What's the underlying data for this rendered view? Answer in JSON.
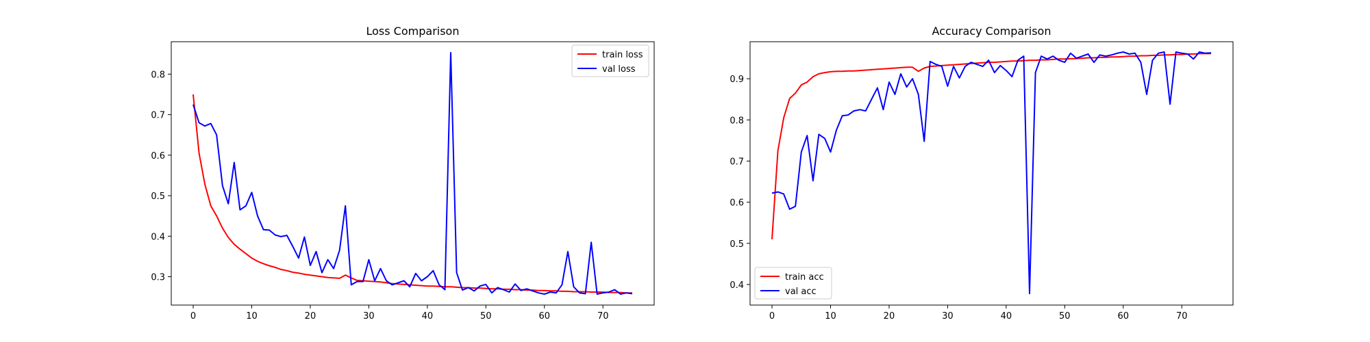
{
  "chart_data": [
    {
      "type": "line",
      "title": "Loss Comparison",
      "xlabel": "",
      "ylabel": "",
      "xlim": [
        -3.75,
        78.75
      ],
      "ylim": [
        0.23,
        0.88
      ],
      "xticks": [
        0,
        10,
        20,
        30,
        40,
        50,
        60,
        70
      ],
      "yticks": [
        0.3,
        0.4,
        0.5,
        0.6,
        0.7,
        0.8
      ],
      "tick_labels_x": [
        "0",
        "10",
        "20",
        "30",
        "40",
        "50",
        "60",
        "70"
      ],
      "tick_labels_y": [
        "0.3",
        "0.4",
        "0.5",
        "0.6",
        "0.7",
        "0.8"
      ],
      "legend_position": "upper right",
      "series": [
        {
          "name": "train loss",
          "color": "#ff0000",
          "values": [
            0.75,
            0.605,
            0.528,
            0.475,
            0.45,
            0.42,
            0.397,
            0.38,
            0.368,
            0.357,
            0.346,
            0.338,
            0.332,
            0.327,
            0.323,
            0.318,
            0.315,
            0.311,
            0.309,
            0.306,
            0.304,
            0.302,
            0.3,
            0.298,
            0.297,
            0.296,
            0.304,
            0.297,
            0.291,
            0.29,
            0.289,
            0.288,
            0.287,
            0.285,
            0.283,
            0.282,
            0.281,
            0.28,
            0.279,
            0.278,
            0.277,
            0.277,
            0.276,
            0.275,
            0.275,
            0.274,
            0.273,
            0.273,
            0.272,
            0.272,
            0.271,
            0.27,
            0.27,
            0.269,
            0.269,
            0.268,
            0.268,
            0.267,
            0.267,
            0.266,
            0.266,
            0.265,
            0.265,
            0.264,
            0.264,
            0.263,
            0.263,
            0.263,
            0.262,
            0.262,
            0.262,
            0.261,
            0.261,
            0.261,
            0.26,
            0.26
          ]
        },
        {
          "name": "val loss",
          "color": "#0000ff",
          "values": [
            0.725,
            0.68,
            0.672,
            0.678,
            0.65,
            0.525,
            0.48,
            0.582,
            0.465,
            0.475,
            0.508,
            0.45,
            0.416,
            0.415,
            0.403,
            0.399,
            0.402,
            0.375,
            0.346,
            0.398,
            0.328,
            0.362,
            0.31,
            0.342,
            0.32,
            0.365,
            0.475,
            0.28,
            0.288,
            0.288,
            0.342,
            0.29,
            0.32,
            0.29,
            0.28,
            0.285,
            0.29,
            0.275,
            0.308,
            0.29,
            0.3,
            0.315,
            0.28,
            0.268,
            0.853,
            0.31,
            0.267,
            0.273,
            0.265,
            0.277,
            0.281,
            0.26,
            0.273,
            0.268,
            0.262,
            0.282,
            0.266,
            0.27,
            0.265,
            0.26,
            0.257,
            0.262,
            0.26,
            0.28,
            0.362,
            0.275,
            0.26,
            0.258,
            0.385,
            0.257,
            0.26,
            0.262,
            0.268,
            0.257,
            0.26,
            0.258
          ]
        }
      ]
    },
    {
      "type": "line",
      "title": "Accuracy Comparison",
      "xlabel": "",
      "ylabel": "",
      "xlim": [
        -3.75,
        78.75
      ],
      "ylim": [
        0.35,
        0.99
      ],
      "xticks": [
        0,
        10,
        20,
        30,
        40,
        50,
        60,
        70
      ],
      "yticks": [
        0.4,
        0.5,
        0.6,
        0.7,
        0.8,
        0.9
      ],
      "tick_labels_x": [
        "0",
        "10",
        "20",
        "30",
        "40",
        "50",
        "60",
        "70"
      ],
      "tick_labels_y": [
        "0.4",
        "0.5",
        "0.6",
        "0.7",
        "0.8",
        "0.9"
      ],
      "legend_position": "lower left",
      "series": [
        {
          "name": "train acc",
          "color": "#ff0000",
          "values": [
            0.51,
            0.725,
            0.805,
            0.852,
            0.865,
            0.885,
            0.892,
            0.905,
            0.912,
            0.915,
            0.917,
            0.918,
            0.918,
            0.919,
            0.919,
            0.92,
            0.921,
            0.922,
            0.923,
            0.924,
            0.925,
            0.926,
            0.927,
            0.928,
            0.928,
            0.918,
            0.926,
            0.93,
            0.931,
            0.932,
            0.933,
            0.934,
            0.935,
            0.936,
            0.937,
            0.938,
            0.939,
            0.94,
            0.94,
            0.941,
            0.942,
            0.943,
            0.943,
            0.944,
            0.945,
            0.945,
            0.946,
            0.946,
            0.947,
            0.948,
            0.948,
            0.949,
            0.949,
            0.95,
            0.951,
            0.951,
            0.952,
            0.952,
            0.953,
            0.953,
            0.954,
            0.955,
            0.955,
            0.956,
            0.956,
            0.957,
            0.957,
            0.958,
            0.958,
            0.959,
            0.959,
            0.96,
            0.96,
            0.961,
            0.961,
            0.961
          ]
        },
        {
          "name": "val acc",
          "color": "#0000ff",
          "values": [
            0.622,
            0.625,
            0.62,
            0.583,
            0.59,
            0.722,
            0.762,
            0.652,
            0.765,
            0.755,
            0.722,
            0.775,
            0.81,
            0.812,
            0.822,
            0.825,
            0.822,
            0.85,
            0.878,
            0.825,
            0.892,
            0.862,
            0.912,
            0.88,
            0.9,
            0.862,
            0.748,
            0.942,
            0.935,
            0.93,
            0.882,
            0.93,
            0.902,
            0.93,
            0.94,
            0.935,
            0.93,
            0.945,
            0.915,
            0.932,
            0.92,
            0.905,
            0.945,
            0.955,
            0.378,
            0.915,
            0.955,
            0.948,
            0.955,
            0.945,
            0.94,
            0.962,
            0.95,
            0.955,
            0.96,
            0.94,
            0.958,
            0.955,
            0.958,
            0.962,
            0.965,
            0.96,
            0.962,
            0.94,
            0.862,
            0.945,
            0.962,
            0.965,
            0.838,
            0.965,
            0.962,
            0.96,
            0.948,
            0.965,
            0.962,
            0.963
          ]
        }
      ]
    }
  ]
}
